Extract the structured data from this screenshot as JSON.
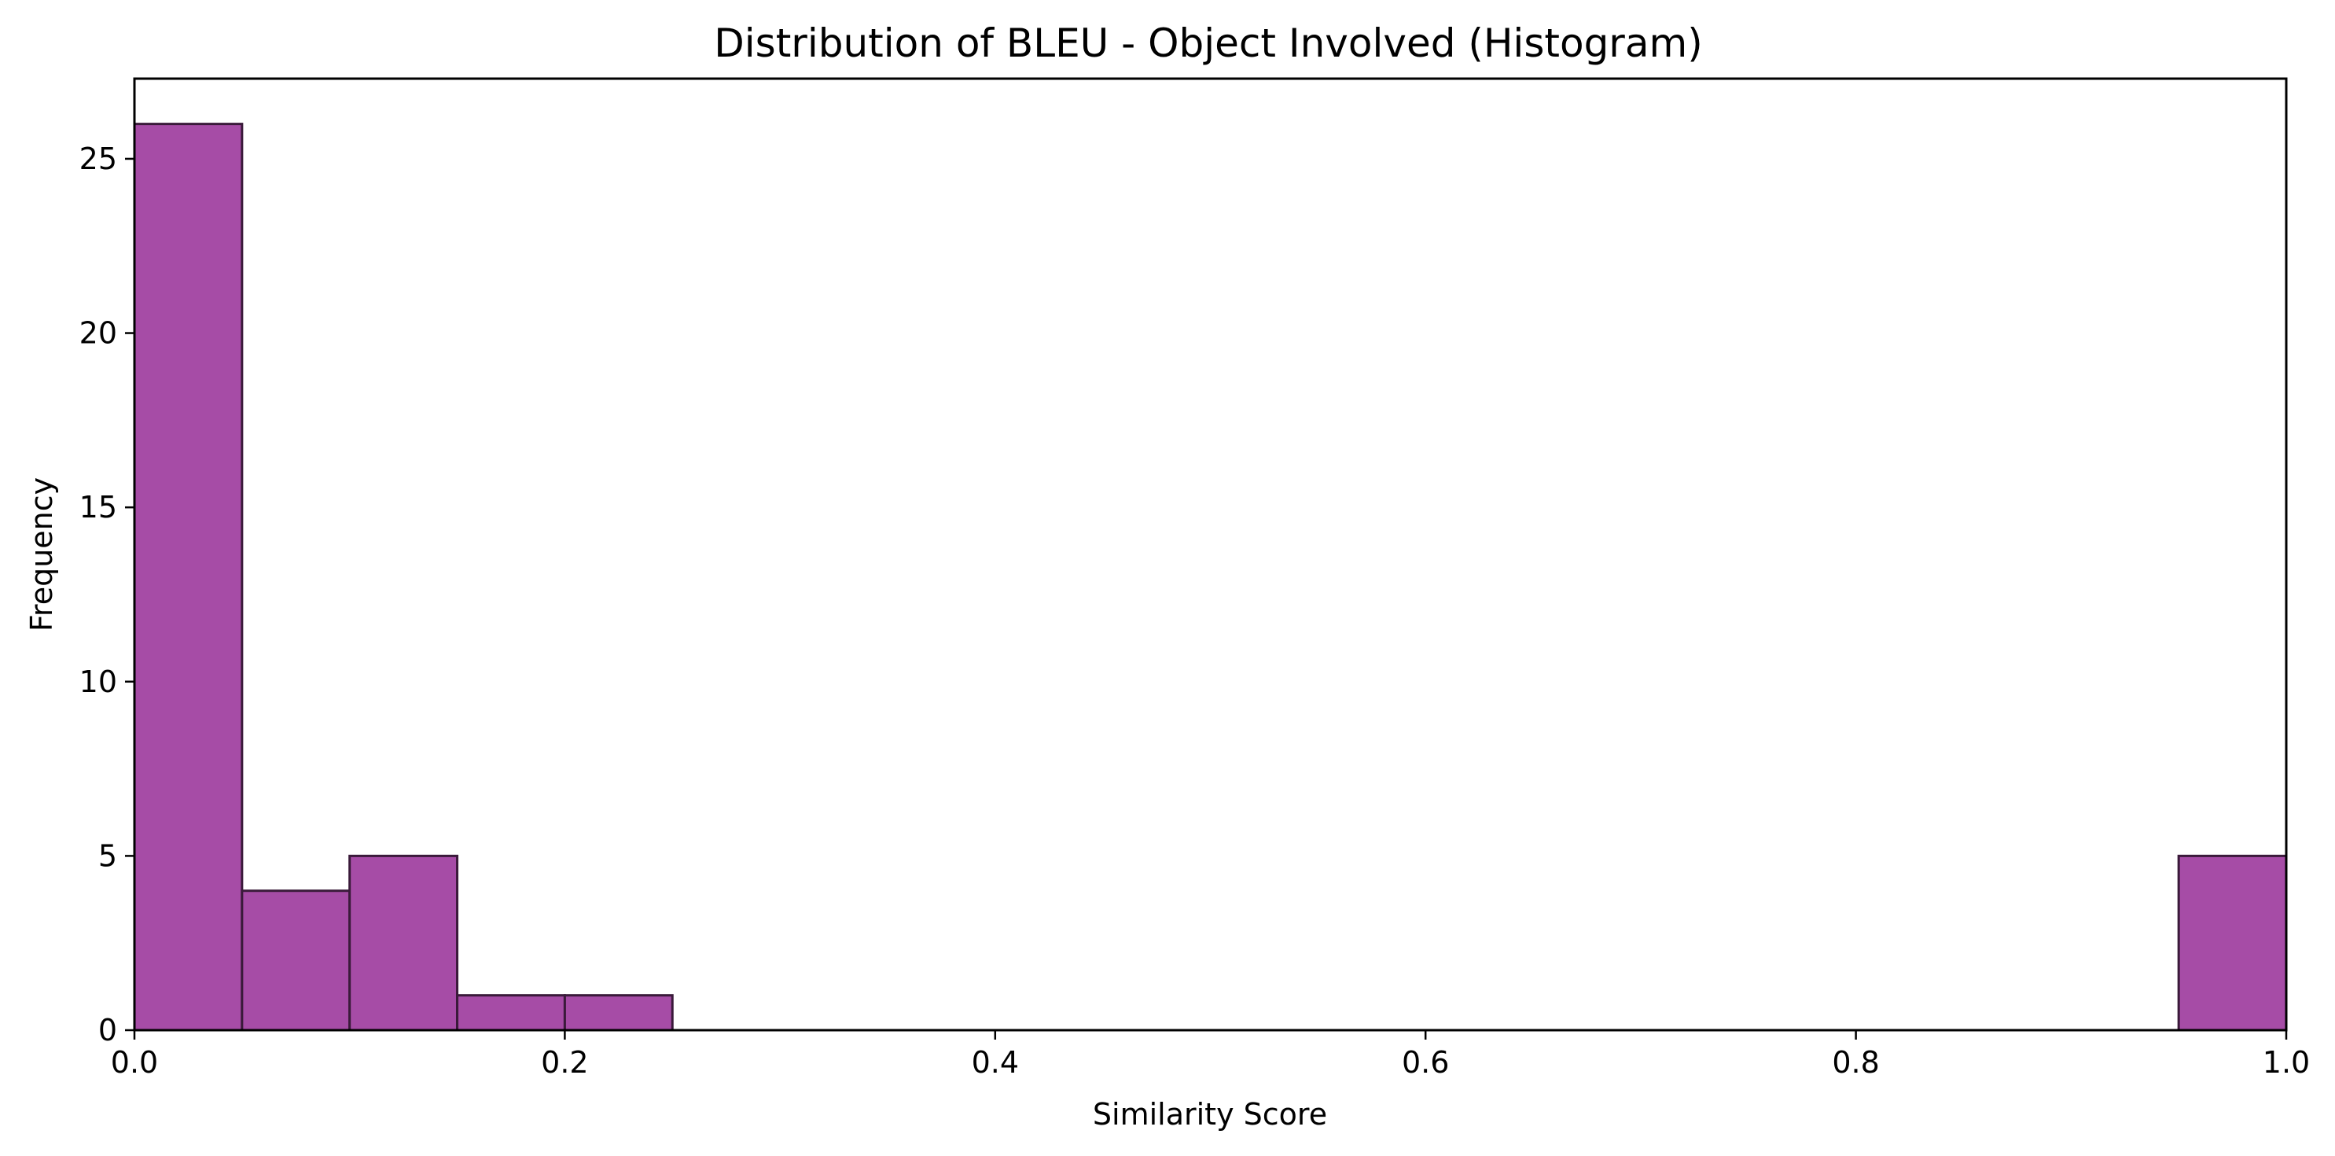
{
  "chart_data": {
    "type": "bar",
    "title": "Distribution of BLEU - Object Involved (Histogram)",
    "xlabel": "Similarity Score",
    "ylabel": "Frequency",
    "xlim": [
      0.0,
      1.0
    ],
    "ylim": [
      0,
      27.3
    ],
    "xticks": [
      0.0,
      0.2,
      0.4,
      0.6,
      0.8,
      1.0
    ],
    "xtick_labels": [
      "0.0",
      "0.2",
      "0.4",
      "0.6",
      "0.8",
      "1.0"
    ],
    "yticks": [
      0,
      5,
      10,
      15,
      20,
      25
    ],
    "ytick_labels": [
      "0",
      "5",
      "10",
      "15",
      "20",
      "25"
    ],
    "bin_width": 0.05,
    "bins": [
      {
        "x0": 0.0,
        "x1": 0.05,
        "count": 26
      },
      {
        "x0": 0.05,
        "x1": 0.1,
        "count": 4
      },
      {
        "x0": 0.1,
        "x1": 0.15,
        "count": 5
      },
      {
        "x0": 0.15,
        "x1": 0.2,
        "count": 1
      },
      {
        "x0": 0.2,
        "x1": 0.25,
        "count": 1
      },
      {
        "x0": 0.95,
        "x1": 1.0,
        "count": 5
      }
    ],
    "grid": false,
    "colors": {
      "bar_fill": "#a64ca6",
      "bar_edge": "#3a1a3a"
    }
  }
}
